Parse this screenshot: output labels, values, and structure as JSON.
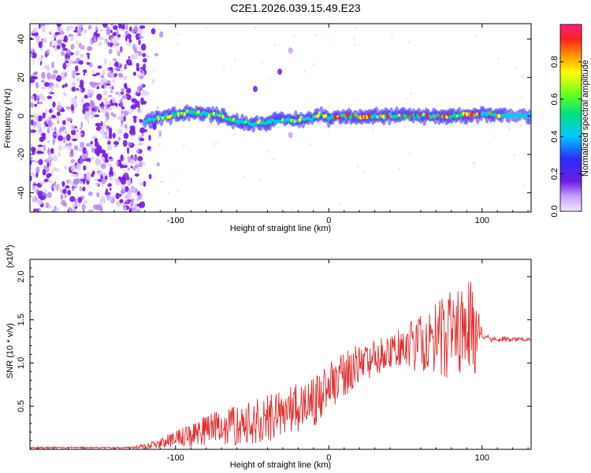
{
  "title": "C2E1.2026.039.15.49.E23",
  "chart_data": [
    {
      "type": "heatmap",
      "title": "C2E1.2026.039.15.49.E23",
      "xlabel": "Height of straight line (km)",
      "ylabel": "Frequency (Hz)",
      "xlim": [
        -195,
        132
      ],
      "ylim": [
        -50,
        48
      ],
      "xticks": [
        -100,
        0,
        100
      ],
      "xtick_labels": [
        "-100",
        "0",
        "100"
      ],
      "yticks": [
        -40,
        -20,
        0,
        20,
        40
      ],
      "ytick_labels": [
        "-40",
        "-20",
        "0",
        "20",
        "40"
      ],
      "noise_region_x": [
        -195,
        -120
      ],
      "signal_track": {
        "x": [
          -120,
          -110,
          -100,
          -90,
          -80,
          -70,
          -60,
          -50,
          -40,
          -30,
          -20,
          -10,
          -5,
          0,
          10,
          20,
          40,
          60,
          80,
          100,
          132
        ],
        "freq": [
          -3,
          -1,
          1,
          2,
          1,
          0,
          -3,
          -4,
          -3,
          -2,
          -2,
          -1,
          1,
          -1,
          0,
          0,
          0,
          0,
          0,
          1,
          0
        ]
      },
      "colorbar": {
        "label": "Normalized spectral amplitude",
        "range": [
          0,
          1
        ],
        "ticks": [
          0.0,
          0.2,
          0.4,
          0.6,
          0.8
        ],
        "tick_labels": [
          "0.0",
          "0.2",
          "0.4",
          "0.6",
          "0.8"
        ]
      }
    },
    {
      "type": "line",
      "xlabel": "Height of straight line (km)",
      "ylabel": "SNR (10 * v/v)",
      "y_scale_label": "(x10^4)",
      "y_scale_base": "(x10",
      "y_scale_exp": "4",
      "y_scale_close": ")",
      "xlim": [
        -195,
        132
      ],
      "ylim": [
        0,
        2.2
      ],
      "xticks": [
        -100,
        0,
        100
      ],
      "xtick_labels": [
        "-100",
        "0",
        "100"
      ],
      "yticks": [
        0.5,
        1.0,
        1.5,
        2.0
      ],
      "ytick_labels": [
        "0.5",
        "1.0",
        "1.5",
        "2.0"
      ],
      "series": [
        {
          "name": "SNR",
          "color": "#e03030",
          "trend_x": [
            -195,
            -130,
            -115,
            -100,
            -80,
            -60,
            -40,
            -20,
            -10,
            0,
            20,
            40,
            60,
            80,
            92,
            98,
            105,
            132
          ],
          "trend_y": [
            0.02,
            0.02,
            0.05,
            0.12,
            0.22,
            0.3,
            0.38,
            0.5,
            0.55,
            0.75,
            1.0,
            1.15,
            1.25,
            1.35,
            1.45,
            1.35,
            1.28,
            1.27
          ],
          "amplitude_x": [
            -195,
            -130,
            -110,
            -80,
            -40,
            0,
            40,
            60,
            80,
            95,
            100,
            132
          ],
          "amplitude_y": [
            0.01,
            0.01,
            0.06,
            0.2,
            0.3,
            0.3,
            0.2,
            0.35,
            0.55,
            0.6,
            0.04,
            0.02
          ]
        }
      ]
    }
  ]
}
